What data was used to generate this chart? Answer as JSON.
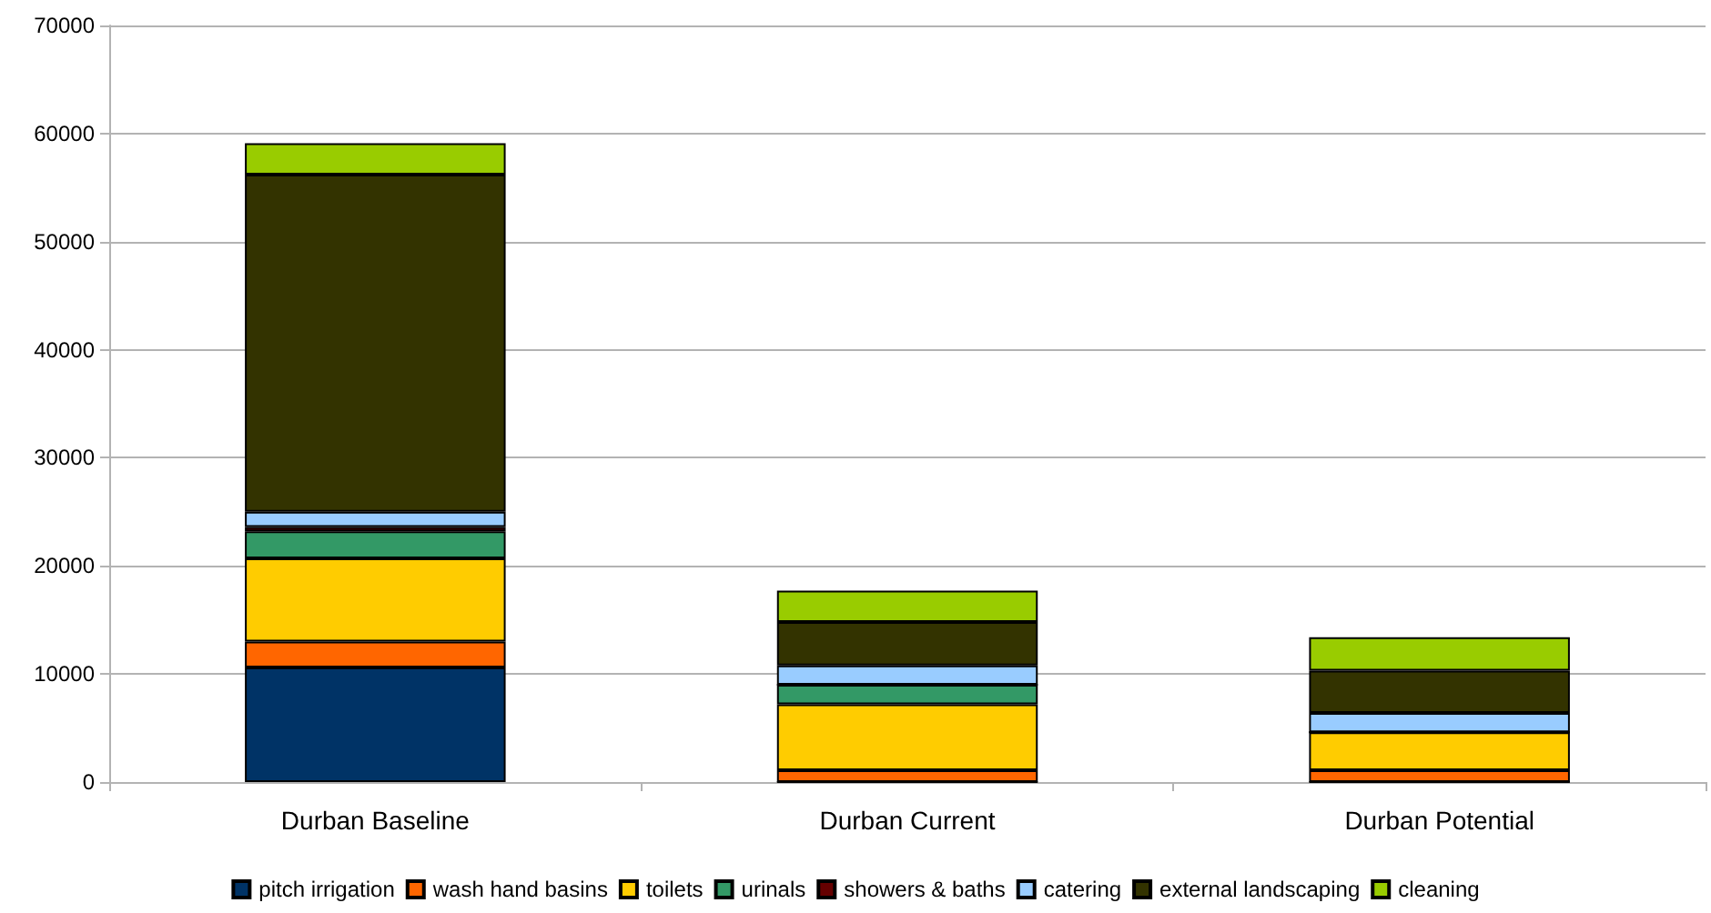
{
  "chart_data": {
    "type": "bar",
    "stacked": true,
    "categories": [
      "Durban Baseline",
      "Durban Current",
      "Durban Potential"
    ],
    "series": [
      {
        "name": "pitch irrigation",
        "color": "#003366",
        "values": [
          10600,
          0,
          0
        ]
      },
      {
        "name": "wash hand basins",
        "color": "#ff6600",
        "values": [
          2400,
          1100,
          1100
        ]
      },
      {
        "name": "toilets",
        "color": "#ffcc00",
        "values": [
          7700,
          6100,
          3500
        ]
      },
      {
        "name": "urinals",
        "color": "#339966",
        "values": [
          2500,
          1800,
          0
        ]
      },
      {
        "name": "showers & baths",
        "color": "#660000",
        "values": [
          400,
          0,
          0
        ]
      },
      {
        "name": "catering",
        "color": "#99ccff",
        "values": [
          1400,
          1800,
          1800
        ]
      },
      {
        "name": "external landscaping",
        "color": "#333300",
        "values": [
          31200,
          4000,
          3900
        ]
      },
      {
        "name": "cleaning",
        "color": "#99cc00",
        "values": [
          2900,
          2900,
          3100
        ]
      }
    ],
    "ylim": [
      0,
      70000
    ],
    "yticks": [
      0,
      10000,
      20000,
      30000,
      40000,
      50000,
      60000,
      70000
    ],
    "grid": "y",
    "legend": "bottom"
  }
}
